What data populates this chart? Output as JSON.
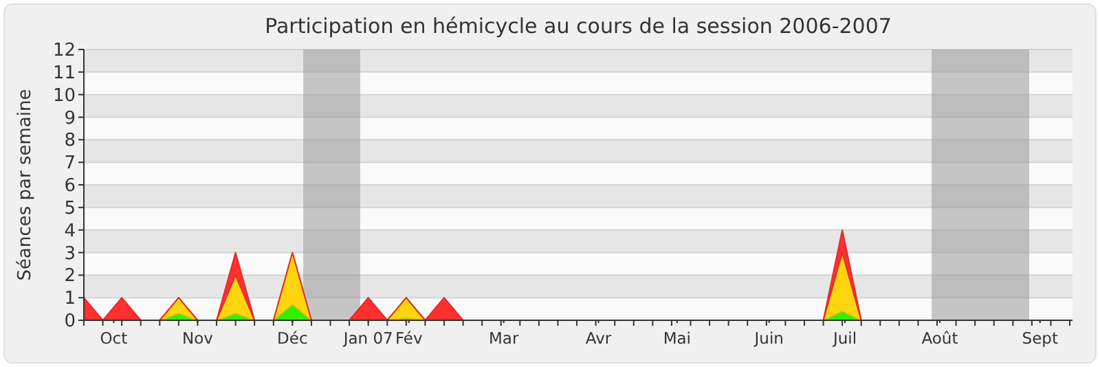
{
  "chart_data": {
    "type": "area",
    "title": "Participation en hémicycle au cours de la session 2006-2007",
    "ylabel": "Séances par semaine",
    "stacked": true,
    "grid": "y",
    "x": [
      "2006-10-02",
      "2006-10-09",
      "2006-10-16",
      "2006-10-23",
      "2006-10-30",
      "2006-11-06",
      "2006-11-13",
      "2006-11-20",
      "2006-11-27",
      "2006-12-04",
      "2006-12-11",
      "2006-12-18",
      "2006-12-25",
      "2007-01-01",
      "2007-01-08",
      "2007-01-15",
      "2007-01-22",
      "2007-01-29",
      "2007-02-05",
      "2007-02-12",
      "2007-02-19",
      "2007-02-26",
      "2007-03-05",
      "2007-03-12",
      "2007-03-19",
      "2007-03-26",
      "2007-04-02",
      "2007-04-09",
      "2007-04-16",
      "2007-04-23",
      "2007-04-30",
      "2007-05-07",
      "2007-05-14",
      "2007-05-21",
      "2007-05-28",
      "2007-06-04",
      "2007-06-11",
      "2007-06-18",
      "2007-06-25",
      "2007-07-02",
      "2007-07-09",
      "2007-07-16",
      "2007-07-23",
      "2007-07-30",
      "2007-08-06",
      "2007-08-13",
      "2007-08-20",
      "2007-08-27",
      "2007-09-03",
      "2007-09-10",
      "2007-09-17",
      "2007-09-24",
      "2007-10-01"
    ],
    "series": [
      {
        "color": "#33ee00",
        "values": [
          0,
          0,
          0,
          0,
          0,
          0.3,
          0,
          0,
          0.3,
          0,
          0,
          0.7,
          0,
          0,
          0,
          0,
          0,
          0.1,
          0,
          0,
          0,
          0,
          0,
          0,
          0,
          0,
          0,
          0,
          0,
          0,
          0,
          0,
          0,
          0,
          0,
          0,
          0,
          0,
          0,
          0,
          0.4,
          0,
          0,
          0,
          0,
          0,
          0,
          0,
          0,
          0,
          0,
          0,
          0
        ]
      },
      {
        "color": "#ffd510",
        "values": [
          0,
          0,
          0,
          0,
          0,
          0.7,
          0,
          0,
          1.7,
          0,
          0,
          2.3,
          0,
          0,
          0,
          0,
          0,
          0.9,
          0,
          0,
          0,
          0,
          0,
          0,
          0,
          0,
          0,
          0,
          0,
          0,
          0,
          0,
          0,
          0,
          0,
          0,
          0,
          0,
          0,
          0,
          2.6,
          0,
          0,
          0,
          0,
          0,
          0,
          0,
          0,
          0,
          0,
          0,
          0
        ]
      },
      {
        "color": "#ff3030",
        "values": [
          1,
          0,
          1,
          0,
          0,
          0,
          0,
          0,
          1,
          0,
          0,
          0,
          0,
          0,
          0,
          1,
          0,
          0,
          0,
          1,
          0,
          0,
          0,
          0,
          0,
          0,
          0,
          0,
          0,
          0,
          0,
          0,
          0,
          0,
          0,
          0,
          0,
          0,
          0,
          0,
          1,
          0,
          0,
          0,
          0,
          0,
          0,
          0,
          0,
          0,
          0,
          0,
          0
        ]
      }
    ],
    "bands": [
      {
        "axis": "x",
        "from": "2006-12-22",
        "to": "2007-01-12",
        "color": "#999999"
      },
      {
        "axis": "x",
        "from": "2007-08-11",
        "to": "2007-09-16",
        "color": "#999999"
      }
    ],
    "xlim": [
      "2006-10-02",
      "2007-10-02"
    ],
    "xticks": [
      {
        "value": "2006-10-13",
        "label": "Oct"
      },
      {
        "value": "2006-11-13",
        "label": "Nov"
      },
      {
        "value": "2006-12-18",
        "label": "Déc"
      },
      {
        "value": "2007-01-15",
        "label": "Jan 07"
      },
      {
        "value": "2007-01-30",
        "label": "Fév"
      },
      {
        "value": "2007-03-06",
        "label": "Mar"
      },
      {
        "value": "2007-04-10",
        "label": "Avr"
      },
      {
        "value": "2007-05-09",
        "label": "Mai"
      },
      {
        "value": "2007-06-12",
        "label": "Juin"
      },
      {
        "value": "2007-07-10",
        "label": "Juil"
      },
      {
        "value": "2007-08-14",
        "label": "Août"
      },
      {
        "value": "2007-09-20",
        "label": "Sept"
      }
    ],
    "ylim": [
      0,
      12
    ],
    "yticks": [
      0,
      1,
      2,
      3,
      4,
      5,
      6,
      7,
      8,
      9,
      10,
      11,
      12
    ]
  }
}
